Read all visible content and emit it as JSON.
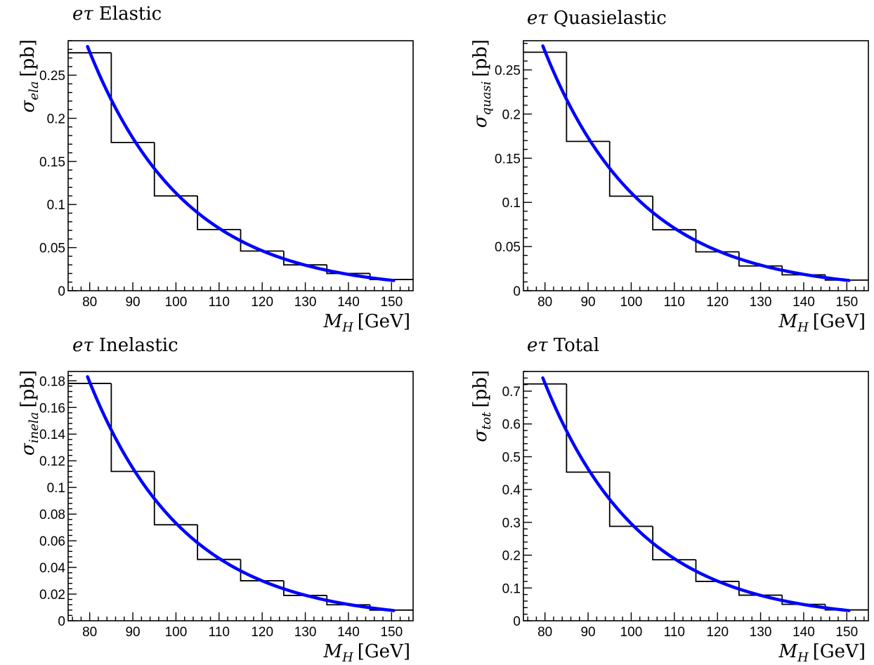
{
  "chart_data": [
    {
      "type": "histogram+line",
      "title_prefix": "eτ",
      "title": "Elastic",
      "xlabel_symbol": "M",
      "xlabel_sub": "H",
      "xlabel_unit": "[GeV]",
      "ylabel_symbol": "σ",
      "ylabel_sub": "ela",
      "ylabel_unit": "[pb]",
      "xlim": [
        75,
        155
      ],
      "ylim": [
        0,
        0.29
      ],
      "x_ticks": [
        80,
        90,
        100,
        110,
        120,
        130,
        140,
        150
      ],
      "y_ticks": [
        0,
        0.05,
        0.1,
        0.15,
        0.2,
        0.25
      ],
      "y_tick_labels": [
        "0",
        "0.05",
        "0.1",
        "0.15",
        "0.2",
        "0.25"
      ],
      "bin_edges": [
        75,
        85,
        95,
        105,
        115,
        125,
        135,
        145,
        155
      ],
      "bin_values": [
        0.276,
        0.172,
        0.11,
        0.071,
        0.046,
        0.03,
        0.02,
        0.013
      ],
      "fit": {
        "x_start": 79.5,
        "x_end": 150.5,
        "x_ref": 80,
        "y_ref": 0.277,
        "slope": 0.0447
      },
      "colors": {
        "histogram": "#000000",
        "fit": "#0000ff"
      }
    },
    {
      "type": "histogram+line",
      "title_prefix": "eτ",
      "title": "Quasielastic",
      "xlabel_symbol": "M",
      "xlabel_sub": "H",
      "xlabel_unit": "[GeV]",
      "ylabel_symbol": "σ",
      "ylabel_sub": "quasi",
      "ylabel_unit": "[pb]",
      "xlim": [
        75,
        155
      ],
      "ylim": [
        0,
        0.283
      ],
      "x_ticks": [
        80,
        90,
        100,
        110,
        120,
        130,
        140,
        150
      ],
      "y_ticks": [
        0,
        0.05,
        0.1,
        0.15,
        0.2,
        0.25
      ],
      "y_tick_labels": [
        "0",
        "0.05",
        "0.1",
        "0.15",
        "0.2",
        "0.25"
      ],
      "bin_edges": [
        75,
        85,
        95,
        105,
        115,
        125,
        135,
        145,
        155
      ],
      "bin_values": [
        0.27,
        0.169,
        0.107,
        0.069,
        0.044,
        0.028,
        0.018,
        0.012
      ],
      "fit": {
        "x_start": 79.5,
        "x_end": 150.5,
        "x_ref": 80,
        "y_ref": 0.271,
        "slope": 0.0447
      },
      "colors": {
        "histogram": "#000000",
        "fit": "#0000ff"
      }
    },
    {
      "type": "histogram+line",
      "title_prefix": "eτ",
      "title": "Inelastic",
      "xlabel_symbol": "M",
      "xlabel_sub": "H",
      "xlabel_unit": "[GeV]",
      "ylabel_symbol": "σ",
      "ylabel_sub": "inela",
      "ylabel_unit": "[pb]",
      "xlim": [
        75,
        155
      ],
      "ylim": [
        0,
        0.187
      ],
      "x_ticks": [
        80,
        90,
        100,
        110,
        120,
        130,
        140,
        150
      ],
      "y_ticks": [
        0,
        0.02,
        0.04,
        0.06,
        0.08,
        0.1,
        0.12,
        0.14,
        0.16,
        0.18
      ],
      "y_tick_labels": [
        "0",
        "0.02",
        "0.04",
        "0.06",
        "0.08",
        "0.1",
        "0.12",
        "0.14",
        "0.16",
        "0.18"
      ],
      "bin_edges": [
        75,
        85,
        95,
        105,
        115,
        125,
        135,
        145,
        155
      ],
      "bin_values": [
        0.178,
        0.112,
        0.072,
        0.046,
        0.03,
        0.019,
        0.012,
        0.008
      ],
      "fit": {
        "x_start": 79.5,
        "x_end": 150.5,
        "x_ref": 80,
        "y_ref": 0.179,
        "slope": 0.0447
      },
      "colors": {
        "histogram": "#000000",
        "fit": "#0000ff"
      }
    },
    {
      "type": "histogram+line",
      "title_prefix": "eτ",
      "title": "Total",
      "xlabel_symbol": "M",
      "xlabel_sub": "H",
      "xlabel_unit": "[GeV]",
      "ylabel_symbol": "σ",
      "ylabel_sub": "tot",
      "ylabel_unit": "[pb]",
      "xlim": [
        75,
        155
      ],
      "ylim": [
        0,
        0.76
      ],
      "x_ticks": [
        80,
        90,
        100,
        110,
        120,
        130,
        140,
        150
      ],
      "y_ticks": [
        0,
        0.1,
        0.2,
        0.3,
        0.4,
        0.5,
        0.6,
        0.7
      ],
      "y_tick_labels": [
        "0",
        "0.1",
        "0.2",
        "0.3",
        "0.4",
        "0.5",
        "0.6",
        "0.7"
      ],
      "bin_edges": [
        75,
        85,
        95,
        105,
        115,
        125,
        135,
        145,
        155
      ],
      "bin_values": [
        0.722,
        0.453,
        0.288,
        0.186,
        0.12,
        0.078,
        0.05,
        0.033
      ],
      "fit": {
        "x_start": 79.5,
        "x_end": 150.5,
        "x_ref": 80,
        "y_ref": 0.724,
        "slope": 0.0447
      },
      "colors": {
        "histogram": "#000000",
        "fit": "#0000ff"
      }
    }
  ]
}
